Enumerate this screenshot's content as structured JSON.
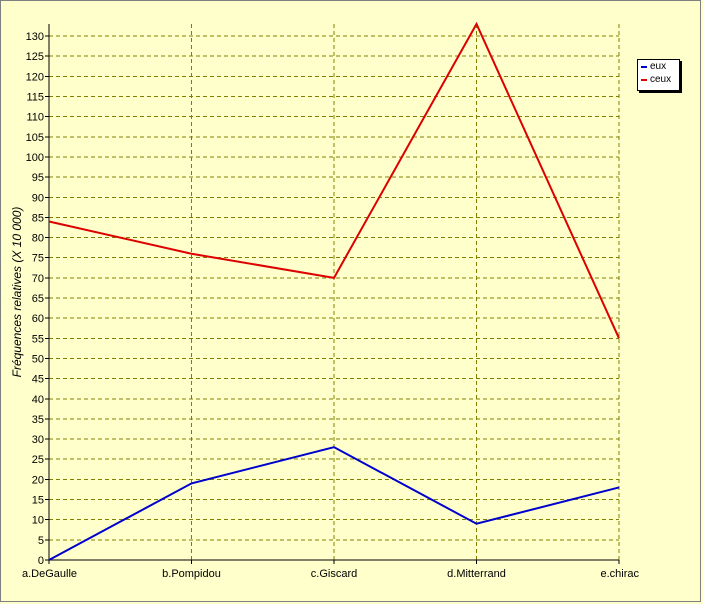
{
  "chart_data": {
    "type": "line",
    "categories": [
      "a.DeGaulle",
      "b.Pompidou",
      "c.Giscard",
      "d.Mitterrand",
      "e.chirac"
    ],
    "series": [
      {
        "name": "eux",
        "values": [
          0,
          19,
          28,
          9,
          18
        ],
        "color": "#0000cc"
      },
      {
        "name": "ceux",
        "values": [
          84,
          76,
          70,
          133,
          55
        ],
        "color": "#dd0000"
      }
    ],
    "ylabel": "Fréquences relatives (X 10 000)",
    "ylim": [
      0,
      133
    ],
    "yticks": [
      0,
      5,
      10,
      15,
      20,
      25,
      30,
      35,
      40,
      45,
      50,
      55,
      60,
      65,
      70,
      75,
      80,
      85,
      90,
      95,
      100,
      105,
      110,
      115,
      120,
      125,
      130
    ],
    "grid": true,
    "legend_position": "top-right"
  }
}
